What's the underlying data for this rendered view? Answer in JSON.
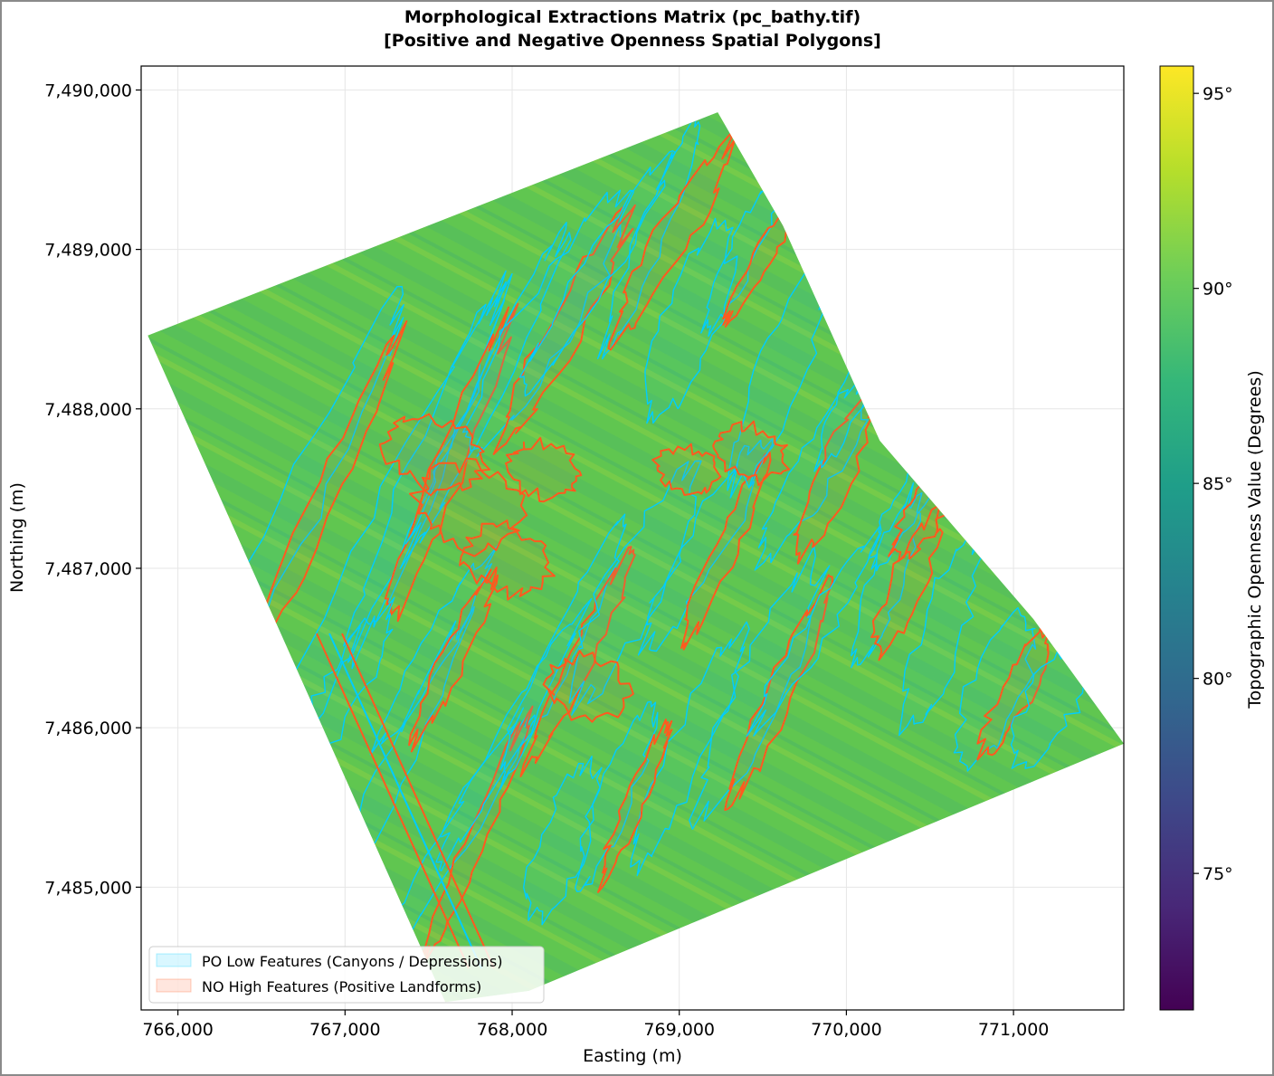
{
  "chart_data": {
    "type": "heatmap",
    "title_line1": "Morphological Extractions Matrix (pc_bathy.tif)",
    "title_line2": "[Positive and Negative Openness Spatial Polygons]",
    "xlabel": "Easting (m)",
    "ylabel": "Northing (m)",
    "xlim": [
      765780,
      771660
    ],
    "ylim": [
      7484230,
      7490150
    ],
    "x_ticks": [
      766000,
      767000,
      768000,
      769000,
      770000,
      771000
    ],
    "x_tick_labels": [
      "766,000",
      "767,000",
      "768,000",
      "769,000",
      "770,000",
      "771,000"
    ],
    "y_ticks": [
      7485000,
      7486000,
      7487000,
      7488000,
      7489000,
      7490000
    ],
    "y_tick_labels": [
      "7,485,000",
      "7,486,000",
      "7,487,000",
      "7,488,000",
      "7,489,000",
      "7,490,000"
    ],
    "grid": true,
    "survey_outline": [
      [
        765820,
        7488460
      ],
      [
        769230,
        7489860
      ],
      [
        769620,
        7489150
      ],
      [
        770200,
        7487800
      ],
      [
        771120,
        7486680
      ],
      [
        771660,
        7485900
      ],
      [
        768100,
        7484350
      ],
      [
        767600,
        7484280
      ]
    ],
    "colorbar": {
      "label": "Topographic Openness Value (Degrees)",
      "range": [
        71.5,
        95.7
      ],
      "ticks": [
        75,
        80,
        85,
        90,
        95
      ],
      "tick_labels": [
        "75°",
        "80°",
        "85°",
        "90°",
        "95°"
      ],
      "colormap": "viridis",
      "colors": [
        "#440154",
        "#482878",
        "#3e4989",
        "#31688e",
        "#26828e",
        "#1f9e89",
        "#35b779",
        "#6ece58",
        "#b5de2b",
        "#fde725"
      ]
    },
    "legend": {
      "position": "lower-left",
      "entries": [
        {
          "label": "PO Low Features (Canyons / Depressions)",
          "color": "#00ccff"
        },
        {
          "label": "NO High Features (Positive Landforms)",
          "color": "#ff5a1f"
        }
      ]
    }
  }
}
